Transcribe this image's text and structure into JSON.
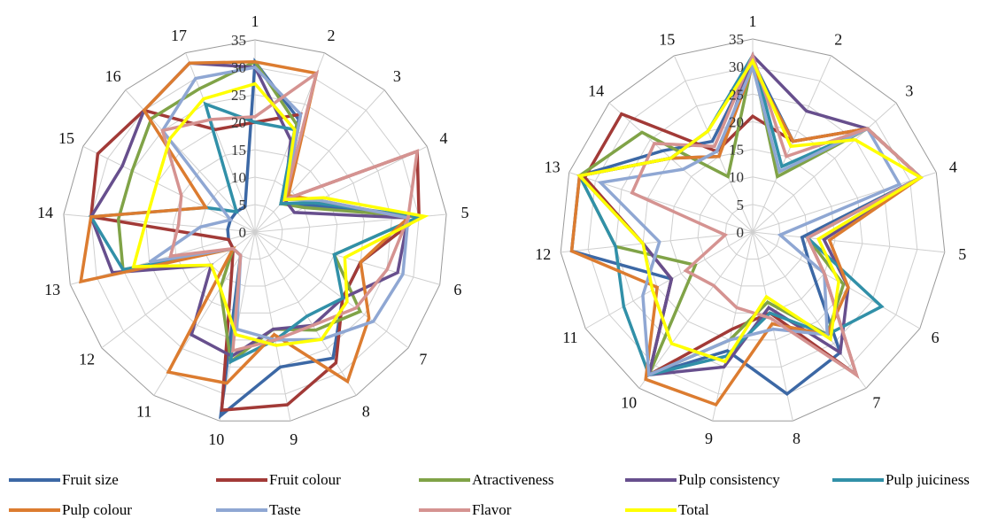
{
  "chart_data": [
    {
      "type": "radar",
      "categories": [
        "1",
        "2",
        "3",
        "4",
        "5",
        "6",
        "7",
        "8",
        "9",
        "10",
        "11",
        "12",
        "13",
        "14",
        "15",
        "16",
        "17"
      ],
      "rlim": [
        0,
        35
      ],
      "ticks": [
        "0",
        "5",
        "10",
        "15",
        "20",
        "25",
        "30",
        "35"
      ],
      "series": [
        {
          "name": "Fruit size",
          "values": [
            31,
            22,
            7,
            11,
            30,
            20,
            20,
            27,
            25,
            34,
            5,
            5,
            5,
            5,
            5,
            5,
            5
          ]
        },
        {
          "name": "Fruit colour",
          "values": [
            20,
            23,
            8,
            33,
            30,
            20,
            20,
            28,
            32,
            33,
            8,
            5,
            5,
            30,
            32,
            30,
            20
          ]
        },
        {
          "name": "Atractiveness",
          "values": [
            31,
            21,
            7,
            10,
            30,
            15,
            24,
            21,
            18,
            24,
            12,
            5,
            25,
            25,
            25,
            28,
            28
          ]
        },
        {
          "name": "Pulp consistency",
          "values": [
            30,
            18,
            8,
            8,
            28,
            27,
            20,
            20,
            18,
            23,
            22,
            10,
            27,
            30,
            27,
            30,
            33
          ]
        },
        {
          "name": "Pulp juiciness",
          "values": [
            20,
            20,
            7,
            12,
            30,
            15,
            20,
            18,
            20,
            24,
            5,
            5,
            25,
            30,
            10,
            5,
            25
          ]
        },
        {
          "name": "Pulp colour",
          "values": [
            31,
            31,
            9,
            13,
            28,
            20,
            26,
            32,
            19,
            28,
            30,
            5,
            33,
            30,
            10,
            30,
            33
          ]
        },
        {
          "name": "Taste",
          "values": [
            30,
            23,
            8,
            13,
            28,
            28,
            27,
            23,
            20,
            18,
            5,
            5,
            20,
            10,
            5,
            25,
            30
          ]
        },
        {
          "name": "Flavor",
          "values": [
            21,
            31,
            8,
            33,
            28,
            25,
            23,
            20,
            20,
            22,
            5,
            5,
            16,
            14,
            15,
            25,
            22
          ]
        },
        {
          "name": "Total",
          "values": [
            27,
            20,
            8,
            14,
            31,
            17,
            21,
            23,
            21,
            19,
            12,
            10,
            23,
            20,
            20,
            23,
            26
          ]
        }
      ]
    },
    {
      "type": "radar",
      "categories": [
        "1",
        "2",
        "3",
        "4",
        "5",
        "6",
        "7",
        "8",
        "9",
        "10",
        "11",
        "12",
        "13",
        "14",
        "15"
      ],
      "rlim": [
        0,
        35
      ],
      "ticks": [
        "0",
        "5",
        "10",
        "15",
        "20",
        "25",
        "30",
        "35"
      ],
      "series": [
        {
          "name": "Fruit size",
          "values": [
            31,
            18,
            28,
            32,
            9,
            12,
            27,
            30,
            22,
            32,
            17,
            33,
            33,
            22,
            18
          ]
        },
        {
          "name": "Fruit colour",
          "values": [
            21,
            18,
            28,
            32,
            10,
            15,
            32,
            15,
            18,
            32,
            17,
            20,
            32,
            32,
            16
          ]
        },
        {
          "name": "Atractiveness",
          "values": [
            31,
            11,
            28,
            32,
            10,
            19,
            23,
            13,
            20,
            32,
            12,
            25,
            33,
            27,
            11
          ]
        },
        {
          "name": "Pulp consistency",
          "values": [
            32,
            24,
            28,
            32,
            13,
            20,
            27,
            14,
            25,
            32,
            17,
            20,
            33,
            20,
            15
          ]
        },
        {
          "name": "Pulp juiciness",
          "values": [
            32,
            13,
            28,
            32,
            10,
            27,
            23,
            15,
            23,
            32,
            27,
            25,
            33,
            20,
            20
          ]
        },
        {
          "name": "Pulp colour",
          "values": [
            30,
            18,
            28,
            32,
            14,
            20,
            23,
            17,
            32,
            33,
            20,
            33,
            33,
            20,
            15
          ]
        },
        {
          "name": "Taste",
          "values": [
            30,
            12,
            28,
            28,
            5,
            15,
            23,
            18,
            20,
            32,
            23,
            17,
            29,
            17,
            16
          ]
        },
        {
          "name": "Flavor",
          "values": [
            32,
            15,
            28,
            32,
            10,
            15,
            32,
            16,
            14,
            12,
            14,
            5,
            23,
            24,
            17
          ]
        },
        {
          "name": "Total",
          "values": [
            31,
            17,
            25,
            32,
            12,
            18,
            24,
            12,
            24,
            25,
            21,
            20,
            33,
            20,
            20
          ]
        }
      ]
    }
  ],
  "legend": [
    {
      "name": "Fruit size",
      "color": "#3c68a5"
    },
    {
      "name": "Fruit colour",
      "color": "#a23a37"
    },
    {
      "name": "Atractiveness",
      "color": "#80a347"
    },
    {
      "name": "Pulp consistency",
      "color": "#674f8d"
    },
    {
      "name": "Pulp juiciness",
      "color": "#3190a8"
    },
    {
      "name": "Pulp colour",
      "color": "#dc7c30"
    },
    {
      "name": "Taste",
      "color": "#8fa7d3"
    },
    {
      "name": "Flavor",
      "color": "#d59391"
    },
    {
      "name": "Total",
      "color": "#ffff00"
    }
  ]
}
